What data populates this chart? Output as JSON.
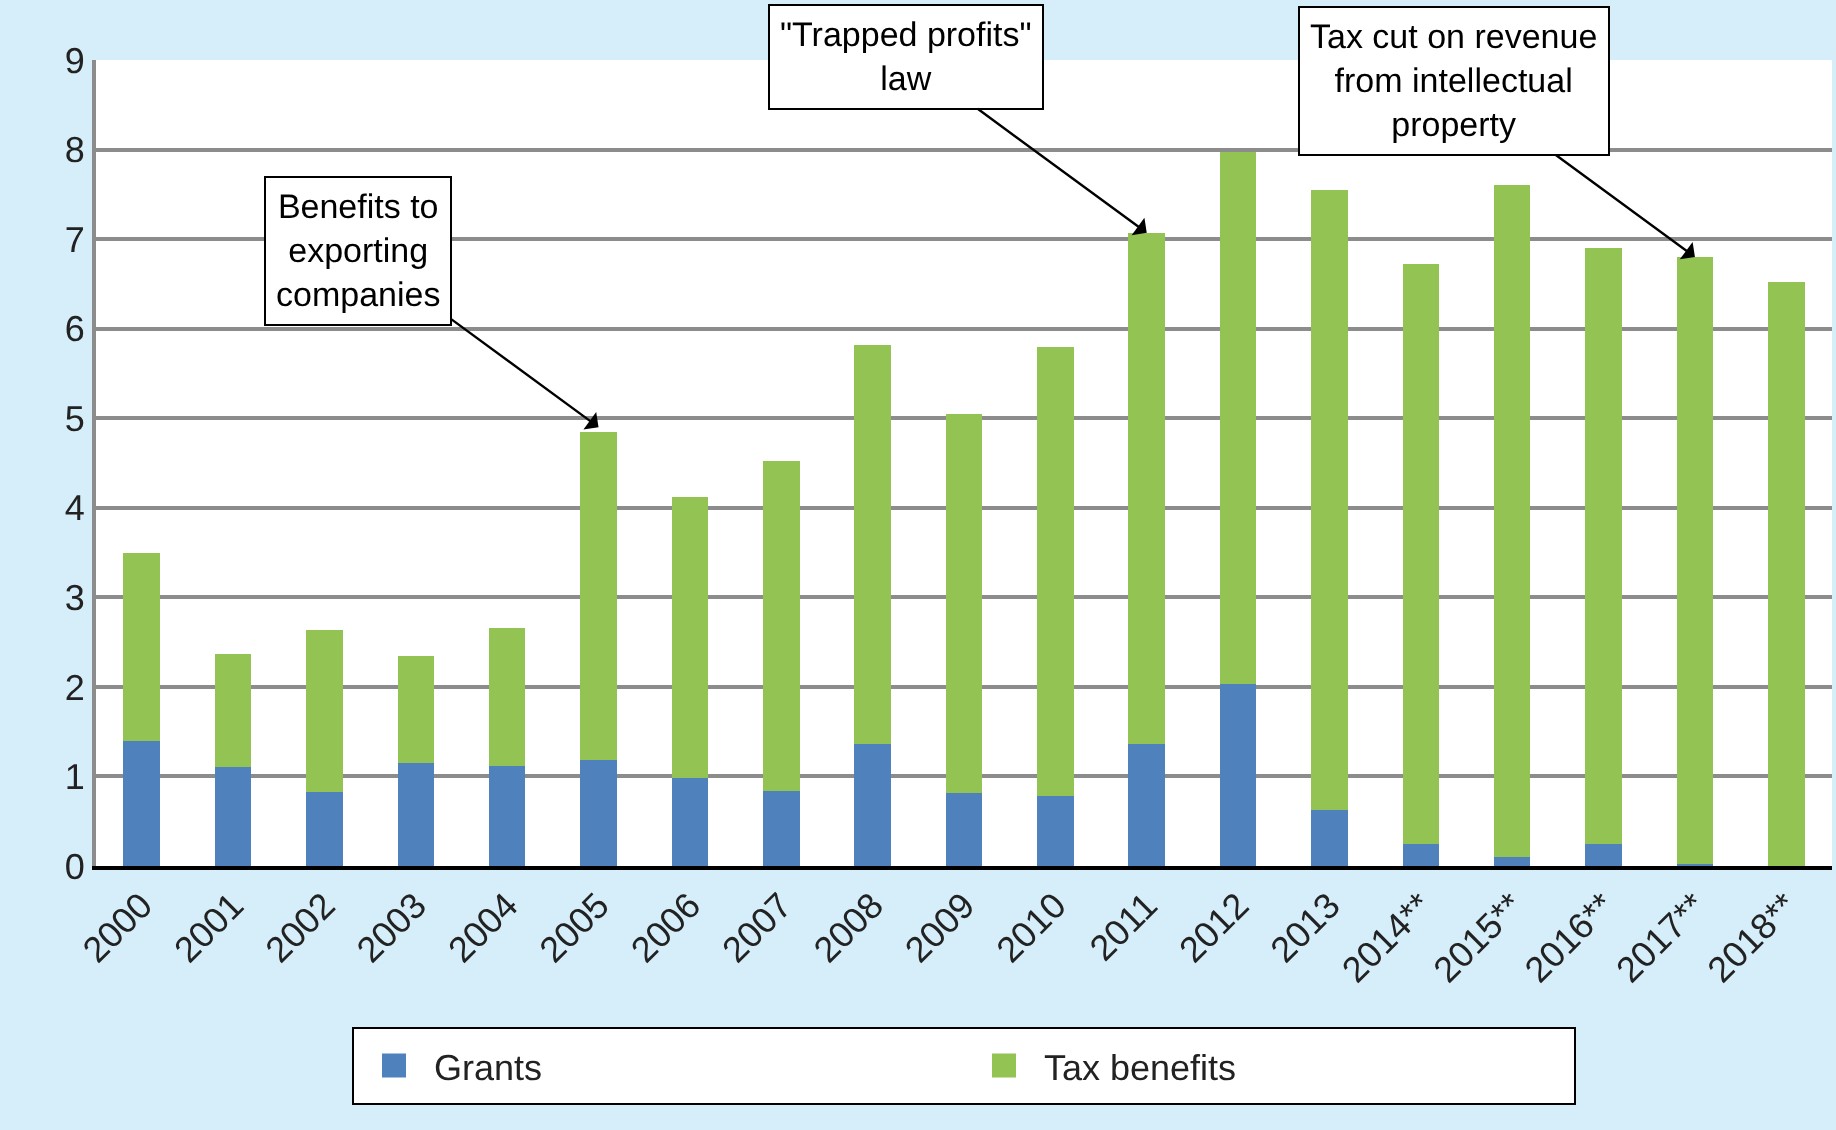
{
  "chart_data": {
    "type": "bar",
    "stacked": true,
    "categories": [
      "2000",
      "2001",
      "2002",
      "2003",
      "2004",
      "2005",
      "2006",
      "2007",
      "2008",
      "2009",
      "2010",
      "2011",
      "2012",
      "2013",
      "2014**",
      "2015**",
      "2016**",
      "2017**",
      "2018**"
    ],
    "series": [
      {
        "name": "Grants",
        "color": "#4f81bd",
        "values": [
          1.4,
          1.1,
          0.83,
          1.15,
          1.12,
          1.18,
          0.98,
          0.84,
          1.36,
          0.82,
          0.78,
          1.36,
          2.03,
          0.62,
          0.25,
          0.1,
          0.25,
          0.02,
          0
        ]
      },
      {
        "name": "Tax benefits",
        "color": "#92c353",
        "values": [
          2.1,
          1.27,
          1.8,
          1.2,
          1.54,
          3.67,
          3.14,
          3.68,
          4.46,
          4.23,
          5.02,
          5.71,
          5.94,
          6.93,
          6.47,
          7.5,
          6.65,
          6.78,
          6.52
        ]
      }
    ],
    "ylim": [
      0,
      9
    ],
    "yticks": [
      0,
      1,
      2,
      3,
      4,
      5,
      6,
      7,
      8,
      9
    ],
    "grid": "y",
    "legend": "bottom",
    "annotations": [
      {
        "text": "Benefits to exporting companies",
        "x": "2005",
        "y": 4.9
      },
      {
        "text": "\"Trapped profits\" law",
        "x": "2011",
        "y": 7.07
      },
      {
        "text": "Tax cut on revenue from intellectual property",
        "x": "2017**",
        "y": 6.8
      }
    ]
  }
}
